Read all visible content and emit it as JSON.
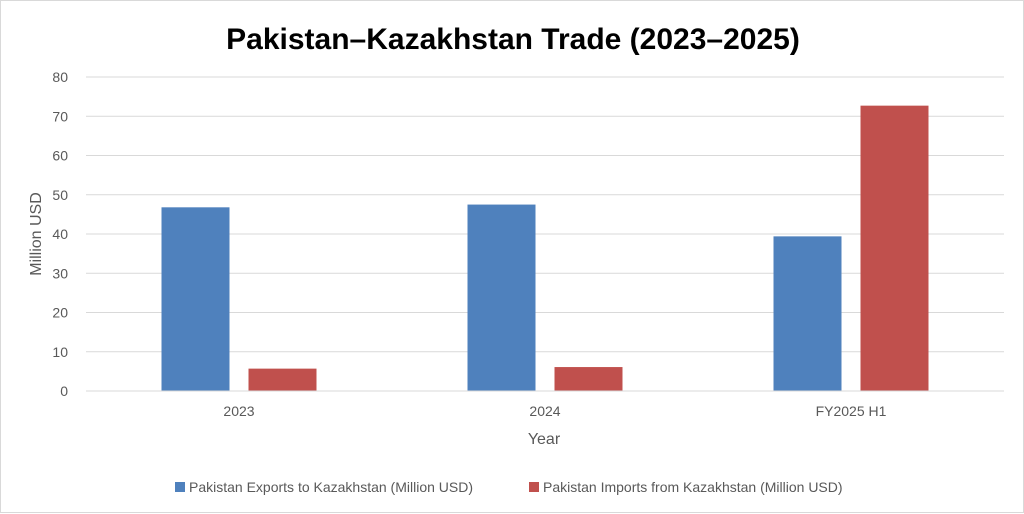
{
  "chart_data": {
    "type": "bar",
    "title": "Pakistan–Kazakhstan Trade (2023–2025)",
    "xlabel": "Year",
    "ylabel": "Million USD",
    "categories": [
      "2023",
      "2024",
      "FY2025 H1"
    ],
    "series": [
      {
        "name": "Pakistan Exports to Kazakhstan (Million USD)",
        "values": [
          46.8,
          47.5,
          39.4
        ],
        "color": "#4f81bd"
      },
      {
        "name": "Pakistan Imports from Kazakhstan (Million USD)",
        "values": [
          5.7,
          6.1,
          72.7
        ],
        "color": "#c0504d"
      }
    ],
    "ylim": [
      0,
      80
    ],
    "yticks": [
      0,
      10,
      20,
      30,
      40,
      50,
      60,
      70,
      80
    ],
    "grid": true,
    "legend_position": "bottom"
  }
}
